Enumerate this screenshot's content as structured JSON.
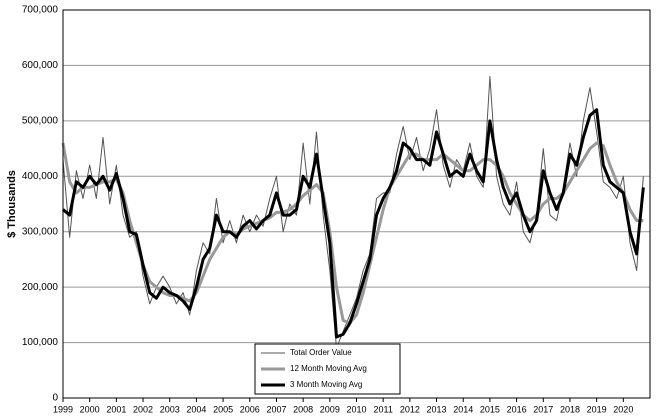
{
  "chart_data": {
    "type": "line",
    "y_label": "$ Thousands",
    "x": [
      1999,
      1999.25,
      1999.5,
      1999.75,
      2000,
      2000.25,
      2000.5,
      2000.75,
      2001,
      2001.25,
      2001.5,
      2001.75,
      2002,
      2002.25,
      2002.5,
      2002.75,
      2003,
      2003.25,
      2003.5,
      2003.75,
      2004,
      2004.25,
      2004.5,
      2004.75,
      2005,
      2005.25,
      2005.5,
      2005.75,
      2006,
      2006.25,
      2006.5,
      2006.75,
      2007,
      2007.25,
      2007.5,
      2007.75,
      2008,
      2008.25,
      2008.5,
      2008.75,
      2009,
      2009.25,
      2009.5,
      2009.75,
      2010,
      2010.25,
      2010.5,
      2010.75,
      2011,
      2011.25,
      2011.5,
      2011.75,
      2012,
      2012.25,
      2012.5,
      2012.75,
      2013,
      2013.25,
      2013.5,
      2013.75,
      2014,
      2014.25,
      2014.5,
      2014.75,
      2015,
      2015.25,
      2015.5,
      2015.75,
      2016,
      2016.25,
      2016.5,
      2016.75,
      2017,
      2017.25,
      2017.5,
      2017.75,
      2018,
      2018.25,
      2018.5,
      2018.75,
      2019,
      2019.25,
      2019.5,
      2019.75,
      2020,
      2020.25,
      2020.5,
      2020.75
    ],
    "series": [
      {
        "name": "Total Order Value",
        "color": "#555555",
        "width": 1,
        "values": [
          430000,
          290000,
          410000,
          360000,
          420000,
          360000,
          470000,
          350000,
          420000,
          330000,
          290000,
          300000,
          220000,
          170000,
          200000,
          220000,
          200000,
          170000,
          190000,
          150000,
          230000,
          280000,
          260000,
          360000,
          280000,
          320000,
          280000,
          330000,
          300000,
          330000,
          310000,
          360000,
          400000,
          300000,
          350000,
          330000,
          460000,
          350000,
          480000,
          330000,
          230000,
          90000,
          120000,
          150000,
          180000,
          230000,
          260000,
          360000,
          370000,
          370000,
          440000,
          490000,
          430000,
          470000,
          410000,
          450000,
          520000,
          420000,
          380000,
          430000,
          410000,
          460000,
          400000,
          380000,
          580000,
          400000,
          350000,
          330000,
          390000,
          300000,
          280000,
          330000,
          450000,
          330000,
          320000,
          380000,
          460000,
          400000,
          500000,
          560000,
          480000,
          390000,
          380000,
          360000,
          400000,
          280000,
          230000,
          400000
        ]
      },
      {
        "name": "12 Month Moving Avg",
        "color": "#999999",
        "width": 3,
        "values": [
          460000,
          390000,
          370000,
          380000,
          380000,
          385000,
          390000,
          390000,
          395000,
          370000,
          320000,
          280000,
          240000,
          210000,
          200000,
          190000,
          185000,
          185000,
          180000,
          175000,
          190000,
          220000,
          250000,
          270000,
          290000,
          300000,
          295000,
          305000,
          310000,
          315000,
          320000,
          325000,
          335000,
          335000,
          340000,
          350000,
          365000,
          375000,
          385000,
          370000,
          300000,
          200000,
          140000,
          135000,
          150000,
          190000,
          240000,
          290000,
          340000,
          380000,
          400000,
          420000,
          440000,
          440000,
          430000,
          430000,
          430000,
          440000,
          430000,
          420000,
          410000,
          410000,
          420000,
          430000,
          430000,
          420000,
          400000,
          370000,
          350000,
          330000,
          320000,
          330000,
          350000,
          360000,
          360000,
          370000,
          390000,
          410000,
          430000,
          450000,
          460000,
          455000,
          420000,
          390000,
          370000,
          340000,
          320000,
          320000
        ]
      },
      {
        "name": "3 Month Moving Avg",
        "color": "#000000",
        "width": 3,
        "values": [
          340000,
          330000,
          390000,
          380000,
          400000,
          385000,
          400000,
          375000,
          405000,
          360000,
          300000,
          295000,
          240000,
          190000,
          180000,
          200000,
          190000,
          185000,
          175000,
          160000,
          200000,
          250000,
          270000,
          330000,
          300000,
          300000,
          290000,
          310000,
          320000,
          305000,
          320000,
          330000,
          370000,
          330000,
          330000,
          340000,
          400000,
          380000,
          440000,
          360000,
          280000,
          110000,
          115000,
          135000,
          170000,
          210000,
          250000,
          330000,
          360000,
          380000,
          410000,
          460000,
          450000,
          430000,
          430000,
          420000,
          480000,
          440000,
          400000,
          410000,
          400000,
          440000,
          410000,
          390000,
          500000,
          430000,
          380000,
          350000,
          370000,
          330000,
          300000,
          320000,
          410000,
          370000,
          340000,
          370000,
          440000,
          420000,
          470000,
          510000,
          520000,
          420000,
          390000,
          380000,
          370000,
          300000,
          260000,
          380000
        ]
      }
    ],
    "xlim": [
      1999,
      2021
    ],
    "xticks": [
      1999,
      2000,
      2001,
      2002,
      2003,
      2004,
      2005,
      2006,
      2007,
      2008,
      2009,
      2010,
      2011,
      2012,
      2013,
      2014,
      2015,
      2016,
      2017,
      2018,
      2019,
      2020
    ],
    "ylim": [
      0,
      700000
    ],
    "yticks": [
      0,
      {
        "value": 100000,
        "label": "100,000"
      },
      {
        "value": 200000,
        "label": "200,000"
      },
      {
        "value": 300000,
        "label": "300,000"
      },
      {
        "value": 400000,
        "label": "400,000"
      },
      {
        "value": 500000,
        "label": "500,000"
      },
      {
        "value": 600000,
        "label": "600,000"
      },
      {
        "value": 700000,
        "label": "700,000"
      }
    ],
    "grid": true,
    "legend": "bottom"
  }
}
